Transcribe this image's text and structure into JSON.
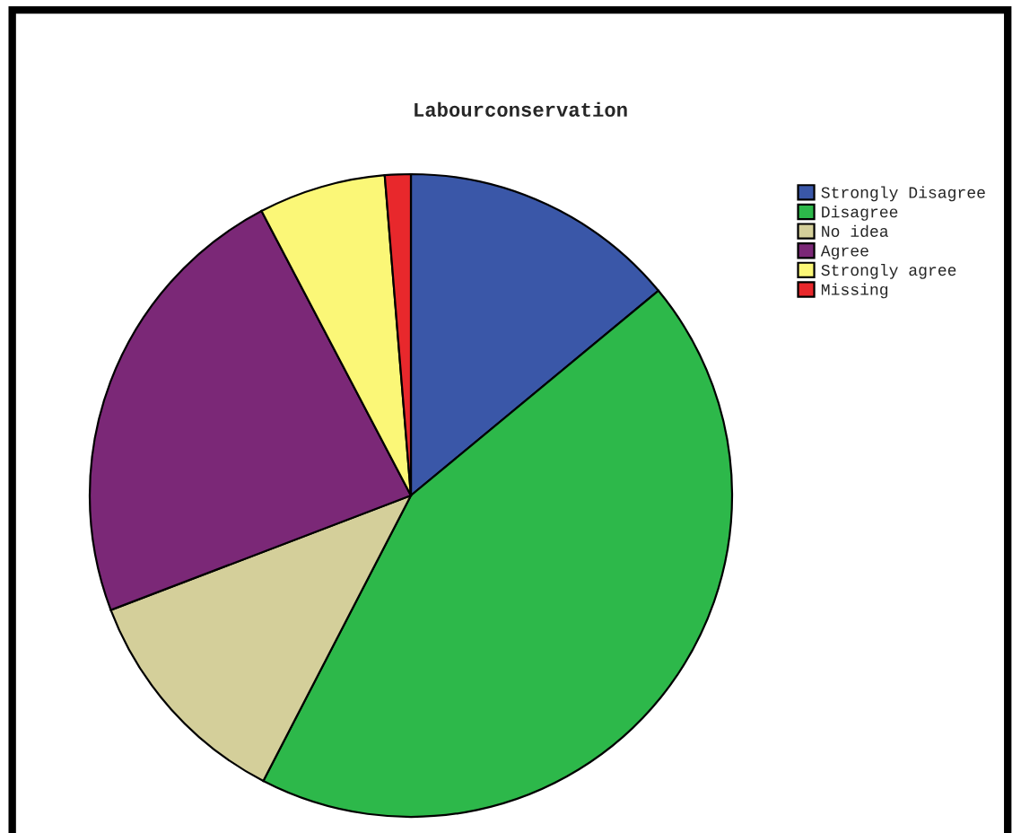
{
  "chart_data": {
    "type": "pie",
    "title": "Labourconservation",
    "categories": [
      "Strongly Disagree",
      "Disagree",
      "No idea",
      "Agree",
      "Strongly agree",
      "Missing"
    ],
    "values": [
      14.0,
      43.6,
      11.6,
      23.1,
      6.4,
      1.3
    ],
    "colors": [
      "#3a57a8",
      "#2db84a",
      "#d4cf9a",
      "#7b2877",
      "#fbf777",
      "#e8282c"
    ],
    "legend": "top right"
  }
}
